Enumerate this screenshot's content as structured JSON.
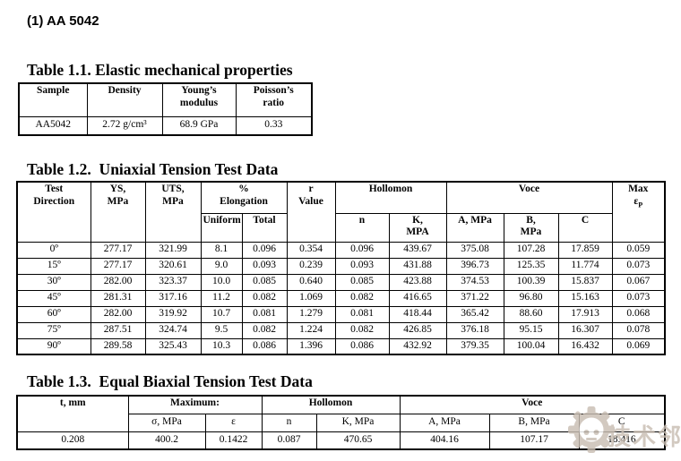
{
  "page": {
    "title": "(1) AA 5042"
  },
  "colors": {
    "text": "#000000",
    "background": "#ffffff",
    "table_border": "#000000",
    "watermark": "#c9beb3"
  },
  "table1": {
    "title": "Table 1.1. Elastic mechanical properties",
    "header": {
      "sample": "Sample",
      "density": "Density",
      "youngs1": "Young’s",
      "youngs2": "modulus",
      "poissons1": "Poisson’s",
      "poissons2": "ratio"
    },
    "rows": [
      [
        "AA5042",
        "2.72 g/cm³",
        "68.9 GPa",
        "0.33"
      ]
    ]
  },
  "table2": {
    "title": "Table 1.2.  Uniaxial Tension Test Data",
    "header": {
      "test_direction1": "Test",
      "test_direction2": "Direction",
      "ys1": "YS,",
      "ys2": "MPa",
      "uts1": "UTS,",
      "uts2": "MPa",
      "elongation1": "%",
      "elongation2": "Elongation",
      "uniform": "Uniform",
      "total": "Total",
      "r1": "r",
      "r2": "Value",
      "hollomon": "Hollomon",
      "n": "n",
      "k1": "K,",
      "k2": "MPA",
      "voce": "Voce",
      "a": "A, MPa",
      "b1": "B,",
      "b2": "MPa",
      "c": "C",
      "max": "Max",
      "max_symbol": "ε",
      "max_sub": "P"
    },
    "rows": [
      [
        "0º",
        "277.17",
        "321.99",
        "8.1",
        "0.096",
        "0.354",
        "0.096",
        "439.67",
        "375.08",
        "107.28",
        "17.859",
        "0.059"
      ],
      [
        "15º",
        "277.17",
        "320.61",
        "9.0",
        "0.093",
        "0.239",
        "0.093",
        "431.88",
        "396.73",
        "125.35",
        "11.774",
        "0.073"
      ],
      [
        "30º",
        "282.00",
        "323.37",
        "10.0",
        "0.085",
        "0.640",
        "0.085",
        "423.88",
        "374.53",
        "100.39",
        "15.837",
        "0.067"
      ],
      [
        "45º",
        "281.31",
        "317.16",
        "11.2",
        "0.082",
        "1.069",
        "0.082",
        "416.65",
        "371.22",
        "96.80",
        "15.163",
        "0.073"
      ],
      [
        "60º",
        "282.00",
        "319.92",
        "10.7",
        "0.081",
        "1.279",
        "0.081",
        "418.44",
        "365.42",
        "88.60",
        "17.913",
        "0.068"
      ],
      [
        "75º",
        "287.51",
        "324.74",
        "9.5",
        "0.082",
        "1.224",
        "0.082",
        "426.85",
        "376.18",
        "95.15",
        "16.307",
        "0.078"
      ],
      [
        "90º",
        "289.58",
        "325.43",
        "10.3",
        "0.086",
        "1.396",
        "0.086",
        "432.92",
        "379.35",
        "100.04",
        "16.432",
        "0.069"
      ]
    ]
  },
  "table3": {
    "title": "Table 1.3.  Equal Biaxial Tension Test Data",
    "header": {
      "t_mm": "t, mm",
      "maximum": "Maximum:",
      "sigma": "σ, MPa",
      "epsilon": "ε",
      "hollomon": "Hollomon",
      "n": "n",
      "k": "K, MPa",
      "voce": "Voce",
      "a": "A, MPa",
      "b": "B, MPa",
      "c": "C"
    },
    "rows": [
      [
        "0.208",
        "400.2",
        "0.1422",
        "0.087",
        "470.65",
        "404.16",
        "107.17",
        "18.416"
      ]
    ]
  },
  "watermark": {
    "text": "技术邻"
  }
}
